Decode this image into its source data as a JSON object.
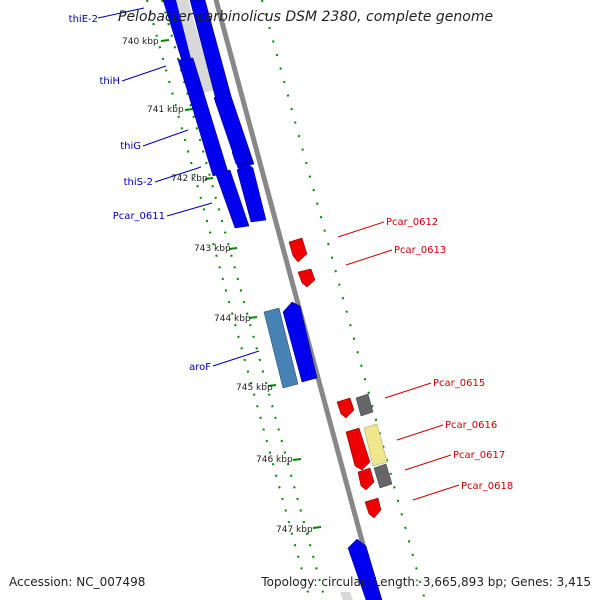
{
  "title": "Pelobacter carbinolicus DSM 2380, complete genome",
  "footer": {
    "accession": "Accession: NC_007498",
    "summary": "Topology: circular; Length: 3,665,893 bp; Genes: 3,415"
  },
  "colors": {
    "forward_gene": "#0000ee",
    "forward_gene_alt": "#4682b4",
    "reverse_gene": "#ee0000",
    "reverse_gene_grey": "#666666",
    "reverse_gene_pale": "#f0e68c",
    "backbone": "#888888",
    "ruler": "#008800",
    "forward_label": "#0000aa",
    "reverse_label": "#cc0000"
  },
  "ruler_labels": [
    "740 kbp",
    "741 kbp",
    "742 kbp",
    "743 kbp",
    "744 kbp",
    "745 kbp",
    "746 kbp",
    "747 kbp"
  ],
  "forward_labels": [
    "thiE-2",
    "thiH",
    "thiG",
    "thiS-2",
    "Pcar_0611",
    "aroF"
  ],
  "reverse_labels": [
    "Pcar_0612",
    "Pcar_0613",
    "Pcar_0615",
    "Pcar_0616",
    "Pcar_0617",
    "Pcar_0618"
  ]
}
